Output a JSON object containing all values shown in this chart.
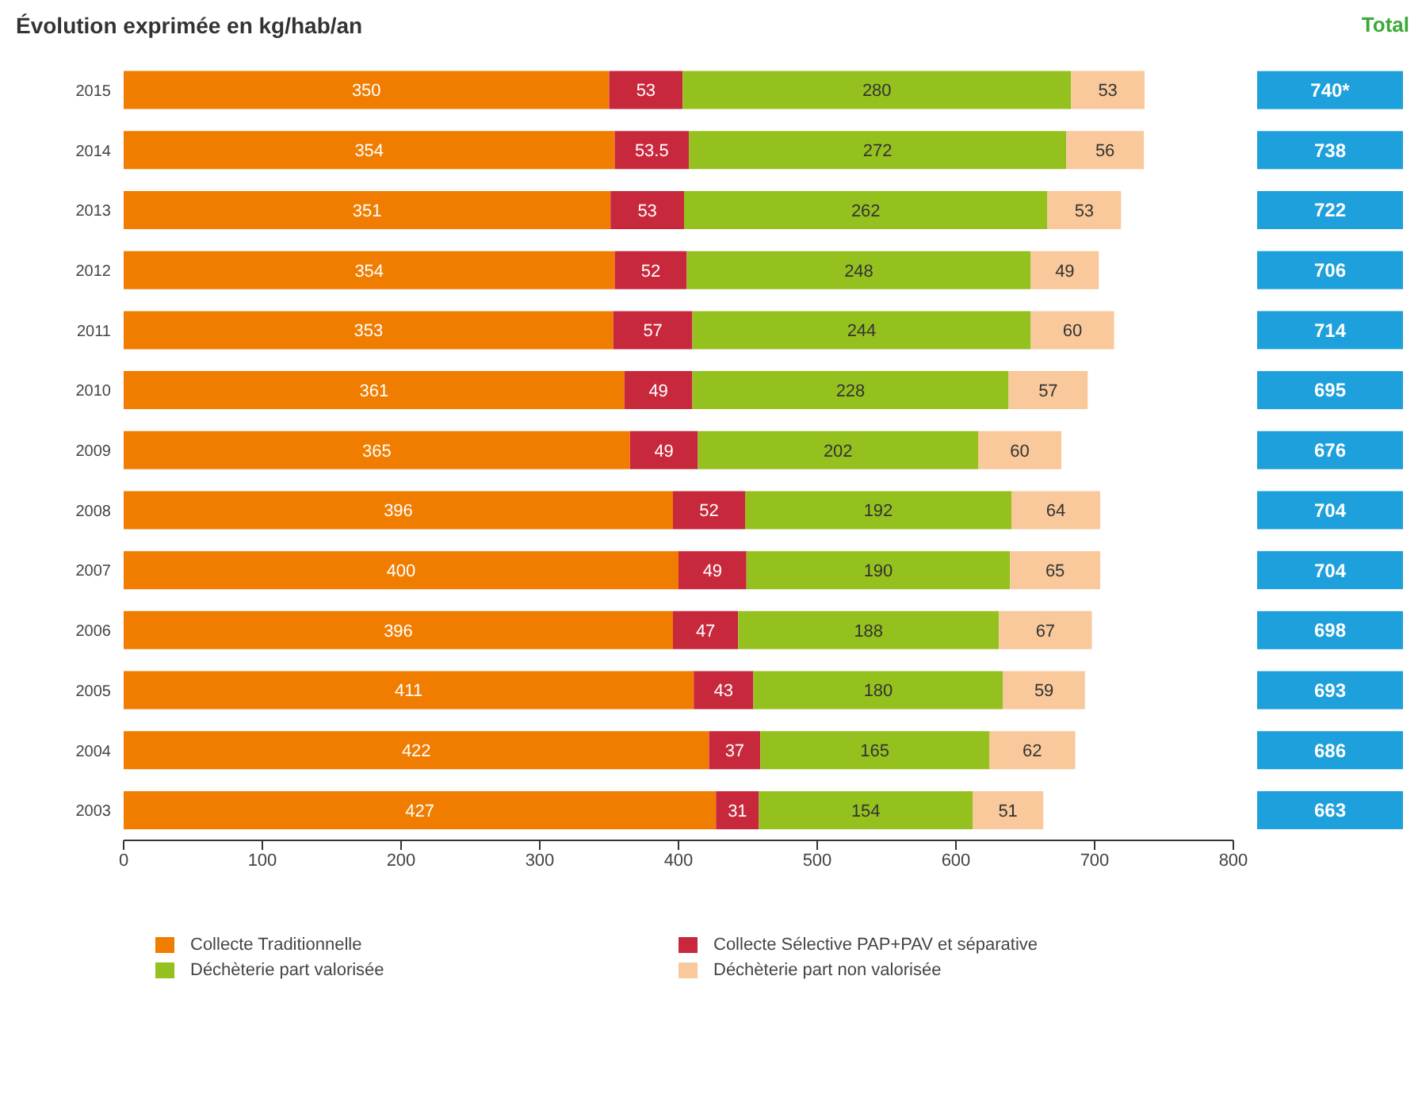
{
  "chart_data": {
    "type": "bar",
    "orientation": "horizontal",
    "stacked": true,
    "title": "Évolution exprimée en kg/hab/an",
    "categories": [
      "2015",
      "2014",
      "2013",
      "2012",
      "2011",
      "2010",
      "2009",
      "2008",
      "2007",
      "2006",
      "2005",
      "2004",
      "2003"
    ],
    "series": [
      {
        "name": "Collecte Traditionnelle",
        "color": "#f07d00",
        "values": [
          350,
          354,
          351,
          354,
          353,
          361,
          365,
          396,
          400,
          396,
          411,
          422,
          427
        ]
      },
      {
        "name": "Collecte Sélective  PAP+PAV et séparative",
        "color": "#c8283c",
        "values": [
          53,
          53.5,
          53,
          52,
          57,
          49,
          49,
          52,
          49,
          47,
          43,
          37,
          31
        ]
      },
      {
        "name": "Déchèterie part valorisée",
        "color": "#95c11f",
        "values": [
          280,
          272,
          262,
          248,
          244,
          228,
          202,
          192,
          190,
          188,
          180,
          165,
          154
        ]
      },
      {
        "name": "Déchèterie part non valorisée",
        "color": "#f9c89b",
        "values": [
          53,
          56,
          53,
          49,
          60,
          57,
          60,
          64,
          65,
          67,
          59,
          62,
          51
        ]
      }
    ],
    "annotations": [
      "Total",
      "740*",
      "738",
      "722",
      "706",
      "714",
      "695",
      "676",
      "704",
      "704",
      "698",
      "693",
      "686",
      "663"
    ],
    "data_labels": true,
    "xlim": [
      0,
      800
    ],
    "xticks": [
      0,
      100,
      200,
      300,
      400,
      500,
      600,
      700,
      800
    ],
    "grid": false,
    "legend": "bottom"
  }
}
